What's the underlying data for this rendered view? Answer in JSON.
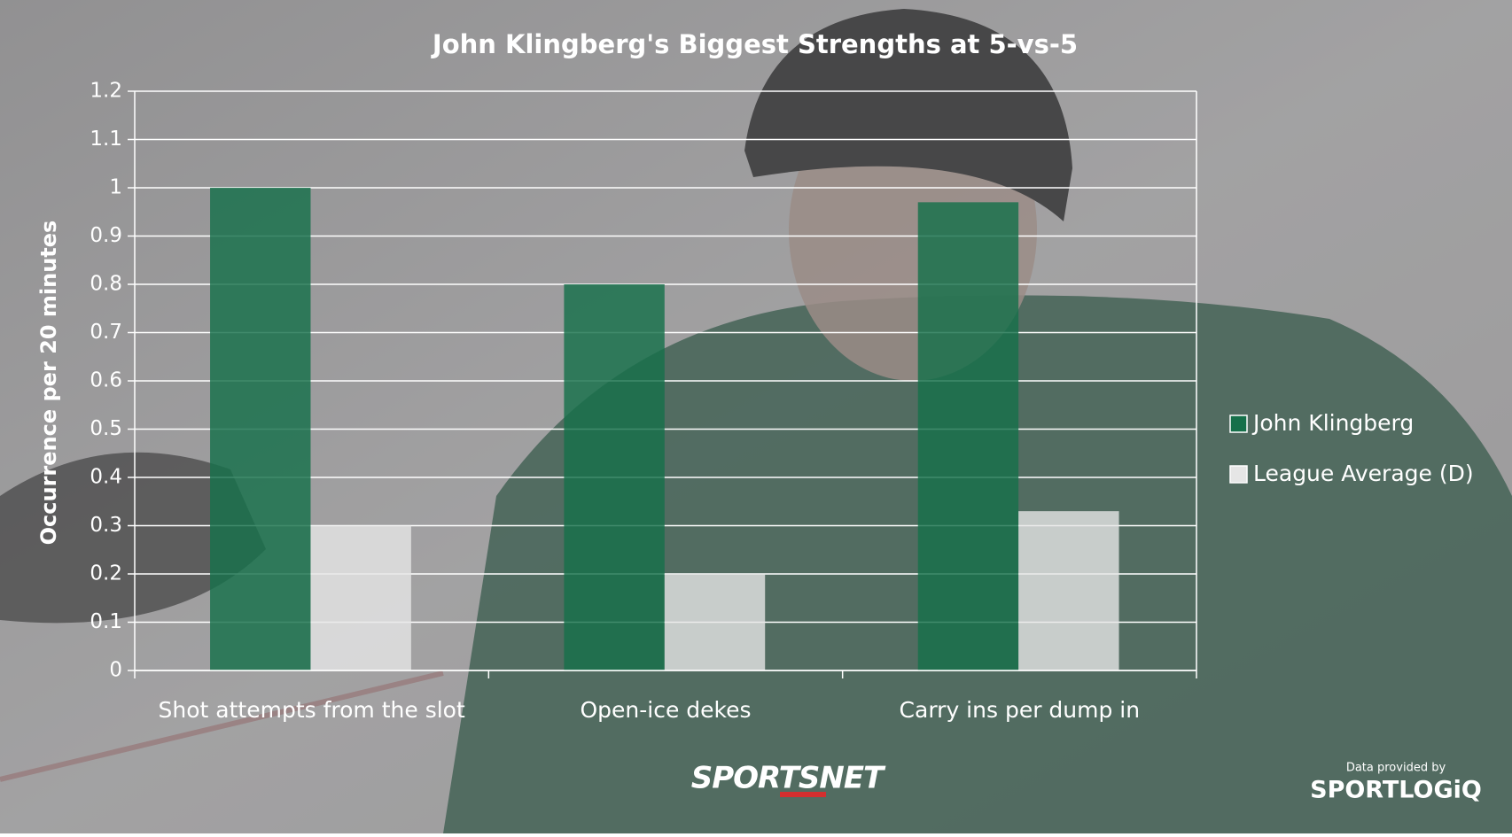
{
  "chart_data": {
    "type": "bar",
    "title": "John Klingberg's Biggest Strengths at 5-vs-5",
    "y_label": "Occurrence per 20 minutes",
    "categories": [
      "Shot attempts from the slot",
      "Open-ice dekes",
      "Carry ins per dump in"
    ],
    "series": [
      {
        "name": "John Klingberg",
        "color": "#16704a",
        "values": [
          1.0,
          0.8,
          0.97
        ]
      },
      {
        "name": "League Average (D)",
        "color": "#e6e6e6",
        "values": [
          0.3,
          0.2,
          0.33
        ]
      }
    ],
    "ylim": [
      0,
      1.2
    ],
    "yticks": [
      0,
      0.1,
      0.2,
      0.3,
      0.4,
      0.5,
      0.6,
      0.7,
      0.8,
      0.9,
      1,
      1.1,
      1.2
    ],
    "grid": true,
    "legend": "right"
  },
  "footer": {
    "logo": "SPORTSNET",
    "credit": "Data provided by",
    "credit_logo": "SPORTLOGiQ"
  }
}
